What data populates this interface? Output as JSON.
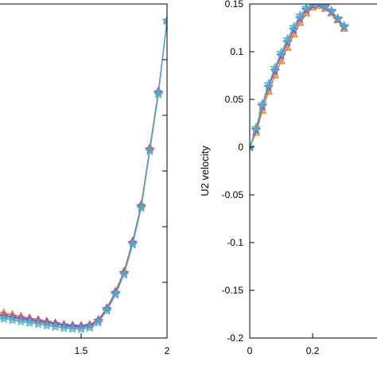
{
  "chart_data": [
    {
      "type": "line",
      "title": "",
      "xlabel": "",
      "ylabel": "",
      "xlim": [
        1.0,
        2.0
      ],
      "ylim": [
        0.0,
        1.0
      ],
      "x_ticks": [
        "1.5",
        "2"
      ],
      "x_tick_values": [
        1.5,
        2.0
      ],
      "y_tick_values": [
        0.1667,
        0.3333,
        0.5,
        0.6667,
        0.8333
      ],
      "grid": false,
      "legend": "none",
      "series": [
        {
          "color": "#e07b2a",
          "marker": "triangle",
          "x": [
            1.0,
            1.05,
            1.1,
            1.15,
            1.2,
            1.25,
            1.3,
            1.35,
            1.4,
            1.45,
            1.5,
            1.55,
            1.6,
            1.65,
            1.7,
            1.75,
            1.8,
            1.85,
            1.9,
            1.95,
            2.0
          ],
          "y": [
            0.08,
            0.075,
            0.07,
            0.065,
            0.06,
            0.055,
            0.05,
            0.045,
            0.04,
            0.038,
            0.037,
            0.04,
            0.055,
            0.09,
            0.14,
            0.2,
            0.29,
            0.4,
            0.57,
            0.74,
            0.95
          ]
        },
        {
          "color": "#7e57c2",
          "marker": "star",
          "x": [
            1.0,
            1.05,
            1.1,
            1.15,
            1.2,
            1.25,
            1.3,
            1.35,
            1.4,
            1.45,
            1.5,
            1.55,
            1.6,
            1.65,
            1.7,
            1.75,
            1.8,
            1.85,
            1.9,
            1.95,
            2.0
          ],
          "y": [
            0.07,
            0.066,
            0.062,
            0.058,
            0.054,
            0.05,
            0.046,
            0.042,
            0.038,
            0.035,
            0.034,
            0.037,
            0.052,
            0.087,
            0.135,
            0.195,
            0.285,
            0.395,
            0.565,
            0.735,
            0.95
          ]
        },
        {
          "color": "#4fb0c6",
          "marker": "star",
          "x": [
            1.0,
            1.05,
            1.1,
            1.15,
            1.2,
            1.25,
            1.3,
            1.35,
            1.4,
            1.45,
            1.5,
            1.55,
            1.6,
            1.65,
            1.7,
            1.75,
            1.8,
            1.85,
            1.9,
            1.95,
            2.0
          ],
          "y": [
            0.062,
            0.058,
            0.054,
            0.05,
            0.046,
            0.042,
            0.038,
            0.034,
            0.03,
            0.028,
            0.027,
            0.031,
            0.047,
            0.082,
            0.13,
            0.19,
            0.28,
            0.39,
            0.56,
            0.73,
            0.95
          ]
        }
      ]
    },
    {
      "type": "line",
      "title": "",
      "xlabel": "",
      "ylabel": "U2 velocity",
      "xlim": [
        0.0,
        0.43
      ],
      "ylim": [
        -0.2,
        0.15
      ],
      "x_ticks": [
        "0",
        "0.2"
      ],
      "x_tick_values": [
        0.0,
        0.2
      ],
      "y_ticks": [
        "0.15",
        "0.1",
        "0.05",
        "0",
        "-0.05",
        "-0.1",
        "-0.15",
        "-0.2"
      ],
      "y_tick_values": [
        0.15,
        0.1,
        0.05,
        0.0,
        -0.05,
        -0.1,
        -0.15,
        -0.2
      ],
      "grid": false,
      "legend": "none",
      "series": [
        {
          "color": "#e07b2a",
          "marker": "triangle",
          "x": [
            0.0,
            0.02,
            0.04,
            0.06,
            0.08,
            0.1,
            0.12,
            0.14,
            0.16,
            0.18,
            0.2,
            0.22,
            0.24,
            0.26,
            0.28,
            0.3
          ],
          "y": [
            0.0,
            0.015,
            0.038,
            0.058,
            0.075,
            0.09,
            0.104,
            0.118,
            0.13,
            0.14,
            0.146,
            0.148,
            0.145,
            0.14,
            0.133,
            0.124
          ]
        },
        {
          "color": "#7e57c2",
          "marker": "star",
          "x": [
            0.0,
            0.02,
            0.04,
            0.06,
            0.08,
            0.1,
            0.12,
            0.14,
            0.16,
            0.18,
            0.2,
            0.22,
            0.24,
            0.26,
            0.28,
            0.3
          ],
          "y": [
            0.0,
            0.018,
            0.043,
            0.063,
            0.08,
            0.096,
            0.11,
            0.123,
            0.135,
            0.144,
            0.149,
            0.15,
            0.147,
            0.142,
            0.134,
            0.126
          ]
        },
        {
          "color": "#4fb0c6",
          "marker": "star",
          "x": [
            0.0,
            0.02,
            0.04,
            0.06,
            0.08,
            0.1,
            0.12,
            0.14,
            0.16,
            0.18,
            0.2,
            0.22,
            0.24,
            0.26,
            0.28,
            0.3
          ],
          "y": [
            0.0,
            0.02,
            0.045,
            0.066,
            0.083,
            0.099,
            0.113,
            0.126,
            0.138,
            0.146,
            0.15,
            0.151,
            0.148,
            0.143,
            0.135,
            0.127
          ]
        }
      ]
    }
  ]
}
